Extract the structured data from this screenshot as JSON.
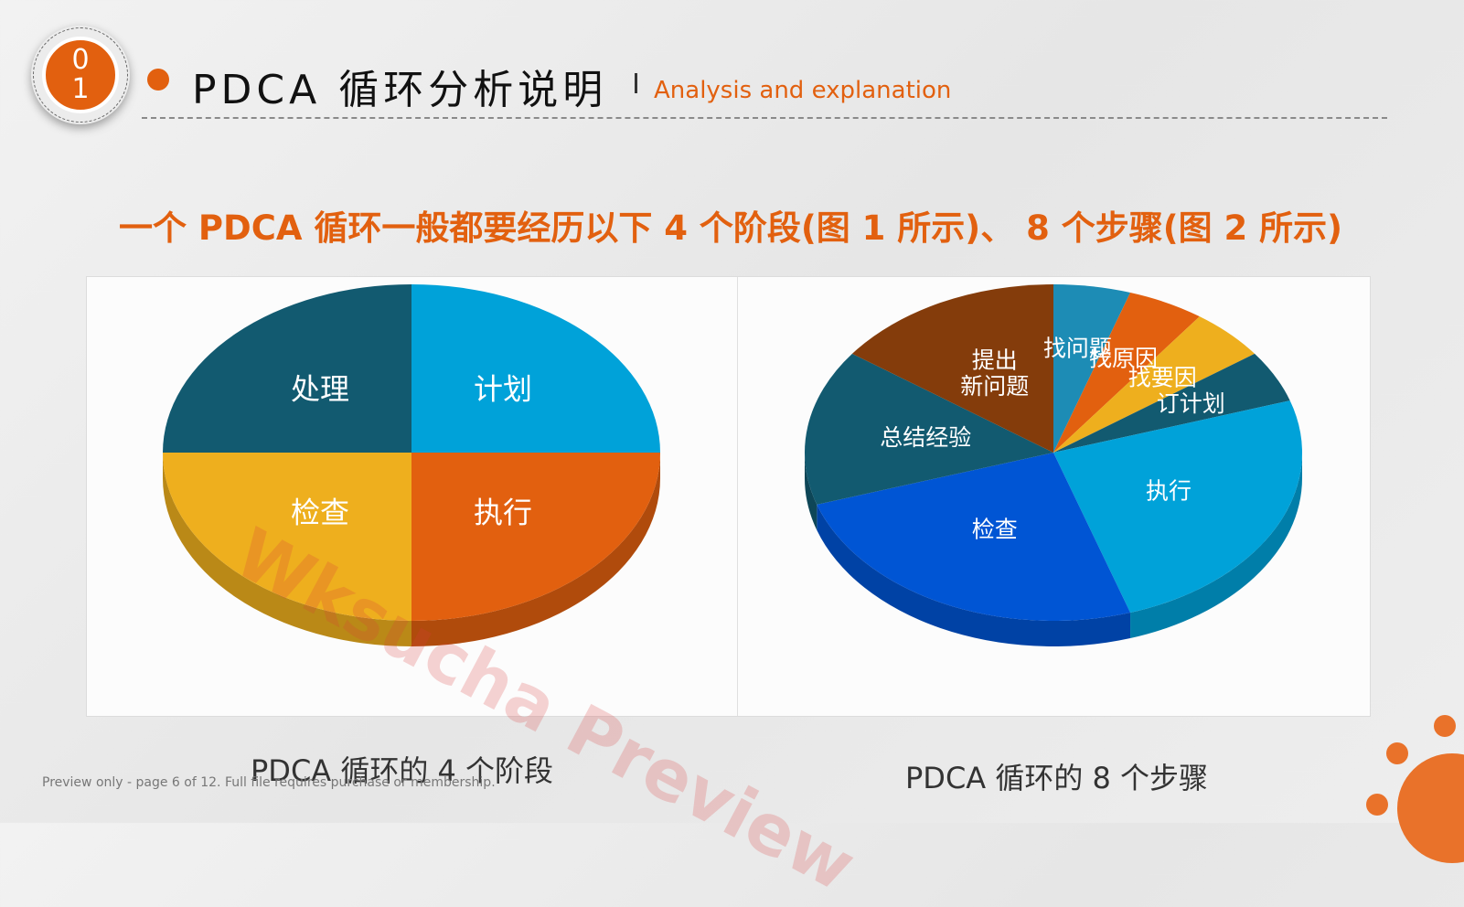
{
  "header": {
    "badge_number": "0\n1",
    "title": "PDCA 循环分析说明",
    "subtitle": "Analysis and explanation"
  },
  "headline": "一个 PDCA 循环一般都要经历以下 4 个阶段(图 1 所示)、 8 个步骤(图 2 所示)",
  "captions": {
    "left": "PDCA 循环的 4 个阶段",
    "right": "PDCA 循环的 8 个步骤"
  },
  "footer_note": "Preview only - page 6 of 12. Full file requires purchase or membership.",
  "watermark": "Wksucha Preview",
  "colors": {
    "accent": "#e2600f",
    "dark_teal": "#125a70",
    "light_blue": "#00a2d9",
    "yellow": "#eeaf1e",
    "orange": "#e2600f",
    "royal_blue": "#0055d4",
    "brown": "#843c0b",
    "steel_blue": "#1d8cb5"
  },
  "chart_data": [
    {
      "type": "pie",
      "title": "",
      "slices": [
        {
          "label": "计划",
          "value": 25,
          "color": "#00a2d9"
        },
        {
          "label": "执行",
          "value": 25,
          "color": "#e2600f"
        },
        {
          "label": "检查",
          "value": 25,
          "color": "#eeaf1e"
        },
        {
          "label": "处理",
          "value": 25,
          "color": "#125a70"
        }
      ]
    },
    {
      "type": "pie",
      "title": "",
      "slices": [
        {
          "label": "找问题",
          "value": 5,
          "color": "#1d8cb5"
        },
        {
          "label": "找原因",
          "value": 5,
          "color": "#e2600f"
        },
        {
          "label": "找要因",
          "value": 5,
          "color": "#eeaf1e"
        },
        {
          "label": "订计划",
          "value": 5,
          "color": "#125a70"
        },
        {
          "label": "执行",
          "value": 25,
          "color": "#00a2d9"
        },
        {
          "label": "检查",
          "value": 25,
          "color": "#0055d4"
        },
        {
          "label": "总结经验",
          "value": 15,
          "color": "#125a70"
        },
        {
          "label": "提出\n新问题",
          "value": 15,
          "color": "#843c0b"
        }
      ]
    }
  ]
}
